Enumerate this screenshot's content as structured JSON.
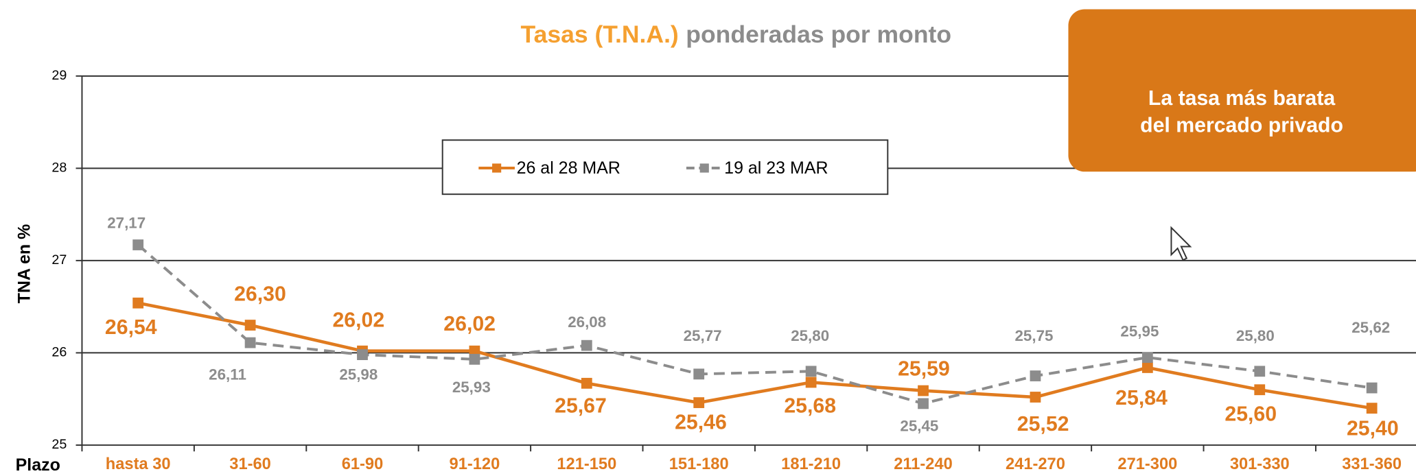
{
  "chart_data": {
    "type": "line",
    "title": {
      "highlight": "Tasas (T.N.A.)",
      "rest": "ponderadas por monto"
    },
    "y_label": "TNA en %",
    "x_label": "Plazo",
    "callout": [
      "La tasa más barata",
      "del mercado privado"
    ],
    "categories": [
      "hasta 30",
      "31-60",
      "61-90",
      "91-120",
      "121-150",
      "151-180",
      "181-210",
      "211-240",
      "241-270",
      "271-300",
      "301-330",
      "331-360"
    ],
    "series": [
      {
        "name": "26 al 28 MAR",
        "color": "#e07b1f",
        "values": [
          26.54,
          26.3,
          26.02,
          26.02,
          25.67,
          25.46,
          25.68,
          25.59,
          25.52,
          25.84,
          25.6,
          25.4
        ],
        "value_labels": [
          "26,54",
          "26,30",
          "26,02",
          "26,02",
          "25,67",
          "25,46",
          "25,68",
          "25,59",
          "25,52",
          "25,84",
          "25,60",
          "25,40"
        ]
      },
      {
        "name": "19 al 23 MAR",
        "color": "#8c8c8c",
        "dashed": true,
        "values": [
          27.17,
          26.11,
          25.98,
          25.93,
          26.08,
          25.77,
          25.8,
          25.45,
          25.75,
          25.95,
          25.8,
          25.62
        ],
        "value_labels": [
          "27,17",
          "26,11",
          "25,98",
          "25,93",
          "26,08",
          "25,77",
          "25,80",
          "25,45",
          "25,75",
          "25,95",
          "25,80",
          "25,62"
        ]
      }
    ],
    "ylim": [
      25,
      29
    ],
    "yticks": [
      25,
      26,
      27,
      28,
      29
    ],
    "grid": true
  }
}
